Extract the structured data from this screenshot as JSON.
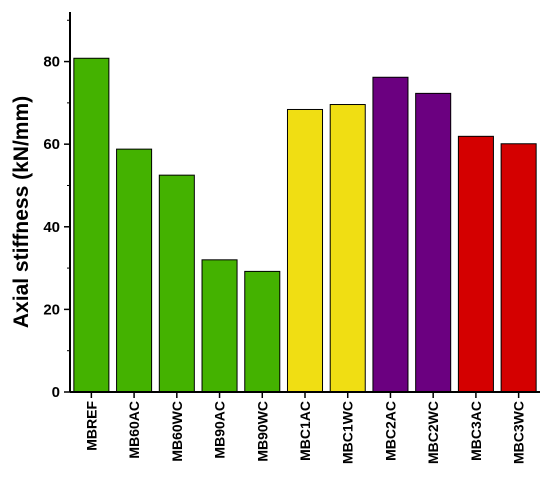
{
  "chart_data": {
    "type": "bar",
    "title": "",
    "xlabel": "",
    "ylabel": "Axial stiffness (kN/mm)",
    "ylim": [
      0,
      92
    ],
    "yticks": [
      0,
      20,
      40,
      60,
      80
    ],
    "grid": false,
    "legend": "none",
    "categories": [
      "MBREF",
      "MB60AC",
      "MB60WC",
      "MB90AC",
      "MB90WC",
      "MBC1AC",
      "MBC1WC",
      "MBC2AC",
      "MBC2WC",
      "MBC3AC",
      "MBC3WC"
    ],
    "values": [
      80.8,
      58.8,
      52.5,
      32.0,
      29.2,
      68.4,
      69.6,
      76.2,
      72.3,
      61.9,
      60.1
    ],
    "colors": [
      "#44b200",
      "#44b200",
      "#44b200",
      "#44b200",
      "#44b200",
      "#f0de13",
      "#f0de13",
      "#6b0080",
      "#6b0080",
      "#d40000",
      "#d40000"
    ]
  }
}
